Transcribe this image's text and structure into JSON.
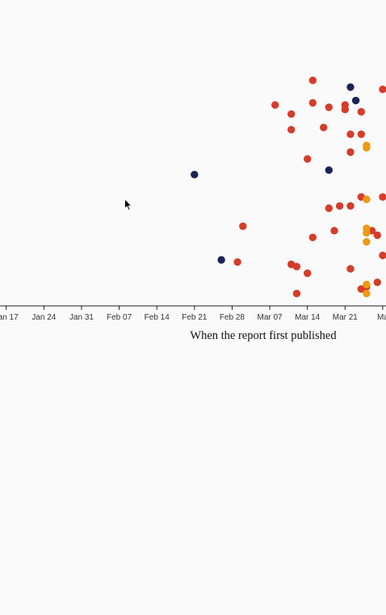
{
  "chart_data": {
    "type": "scatter",
    "xlabel": "When the report first published",
    "x_axis_type": "date",
    "x_ticks": [
      "Jan 17",
      "Jan 24",
      "Jan 31",
      "Feb 07",
      "Feb 14",
      "Feb 21",
      "Feb 28",
      "Mar 07",
      "Mar 14",
      "Mar 21",
      "Ma"
    ],
    "xlim": [
      "2020-01-15",
      "2020-03-30"
    ],
    "ylim": [
      0,
      100
    ],
    "grid": false,
    "legend": "none",
    "colors": {
      "red": "#d43d2a",
      "navy": "#1b2452",
      "orange": "#ec9a12",
      "axis": "#222222"
    },
    "series": [
      {
        "color_key": "navy",
        "points": [
          {
            "x": "2020-02-21",
            "y": 56
          },
          {
            "x": "2020-02-26",
            "y": 18
          },
          {
            "x": "2020-03-17",
            "y": 58
          },
          {
            "x": "2020-03-21",
            "y": 95
          },
          {
            "x": "2020-03-22",
            "y": 89
          }
        ]
      },
      {
        "color_key": "red",
        "points": [
          {
            "x": "2020-02-29",
            "y": 17
          },
          {
            "x": "2020-03-01",
            "y": 33
          },
          {
            "x": "2020-03-07",
            "y": 87
          },
          {
            "x": "2020-03-10",
            "y": 83
          },
          {
            "x": "2020-03-10",
            "y": 76
          },
          {
            "x": "2020-03-10",
            "y": 16
          },
          {
            "x": "2020-03-11",
            "y": 15
          },
          {
            "x": "2020-03-11",
            "y": 3
          },
          {
            "x": "2020-03-13",
            "y": 63
          },
          {
            "x": "2020-03-13",
            "y": 12
          },
          {
            "x": "2020-03-14",
            "y": 98
          },
          {
            "x": "2020-03-14",
            "y": 88
          },
          {
            "x": "2020-03-14",
            "y": 28
          },
          {
            "x": "2020-03-16",
            "y": 77
          },
          {
            "x": "2020-03-17",
            "y": 86
          },
          {
            "x": "2020-03-17",
            "y": 41
          },
          {
            "x": "2020-03-18",
            "y": 31
          },
          {
            "x": "2020-03-19",
            "y": 42
          },
          {
            "x": "2020-03-20",
            "y": 87
          },
          {
            "x": "2020-03-20",
            "y": 85
          },
          {
            "x": "2020-03-21",
            "y": 74
          },
          {
            "x": "2020-03-21",
            "y": 66
          },
          {
            "x": "2020-03-21",
            "y": 42
          },
          {
            "x": "2020-03-21",
            "y": 14
          },
          {
            "x": "2020-03-23",
            "y": 84
          },
          {
            "x": "2020-03-23",
            "y": 74
          },
          {
            "x": "2020-03-23",
            "y": 46
          },
          {
            "x": "2020-03-23",
            "y": 5
          },
          {
            "x": "2020-03-24",
            "y": 6
          },
          {
            "x": "2020-03-25",
            "y": 31
          },
          {
            "x": "2020-03-26",
            "y": 29
          },
          {
            "x": "2020-03-26",
            "y": 8
          },
          {
            "x": "2020-03-27",
            "y": 94
          },
          {
            "x": "2020-03-27",
            "y": 46
          },
          {
            "x": "2020-03-27",
            "y": 20
          }
        ]
      },
      {
        "color_key": "orange",
        "points": [
          {
            "x": "2020-03-24",
            "y": 69
          },
          {
            "x": "2020-03-24",
            "y": 68
          },
          {
            "x": "2020-03-24",
            "y": 45
          },
          {
            "x": "2020-03-24",
            "y": 32
          },
          {
            "x": "2020-03-24",
            "y": 30
          },
          {
            "x": "2020-03-24",
            "y": 26
          },
          {
            "x": "2020-03-24",
            "y": 7
          },
          {
            "x": "2020-03-24",
            "y": 3
          }
        ]
      }
    ]
  },
  "cursor": {
    "icon": "arrow-cursor-icon"
  }
}
